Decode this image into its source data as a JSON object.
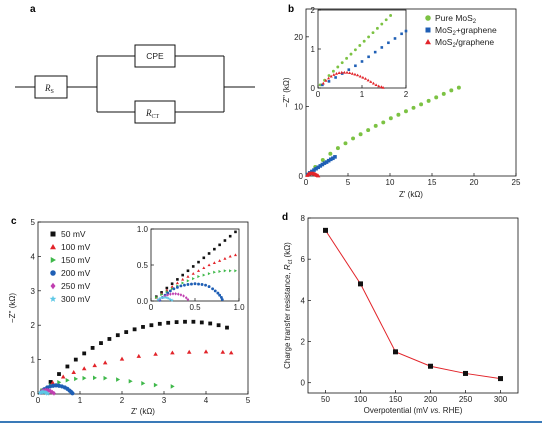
{
  "colors": {
    "green": "#7cc243",
    "blue": "#1f5fb5",
    "red": "#e2242a",
    "black": "#111111",
    "darkgreen": "#3fb84a",
    "purple": "#c03fb0",
    "cyan": "#5ec8e6",
    "line_red": "#e2242a",
    "rule": "#3a7ab8"
  },
  "panels": {
    "a": "a",
    "b": "b",
    "c": "c",
    "d": "d"
  },
  "circuit": {
    "rs_main": "R",
    "rs_sub": "S",
    "cpe": "CPE",
    "rct_main": "R",
    "rct_sub": "CT"
  },
  "chart_data": [
    {
      "id": "b",
      "type": "scatter",
      "title": "",
      "xlabel": "Z' (kΩ)",
      "ylabel": "−Z'' (kΩ)",
      "xlim": [
        0,
        25
      ],
      "ylim": [
        0,
        24
      ],
      "xticks": [
        "0",
        "5",
        "10",
        "15",
        "20",
        "25"
      ],
      "yticks": [
        "0",
        "10",
        "20"
      ],
      "legend_position": "top-right",
      "series": [
        {
          "name": "Pure MoS2",
          "label_main": "Pure MoS",
          "label_sub": "2",
          "label_rest": "",
          "color_key": "green",
          "marker": "circle",
          "x": [
            0.2,
            1.1,
            2.0,
            2.9,
            3.8,
            4.7,
            5.6,
            6.5,
            7.4,
            8.3,
            9.2,
            10.1,
            11.0,
            11.9,
            12.8,
            13.7,
            14.6,
            15.5,
            16.4,
            17.3,
            18.2
          ],
          "y": [
            0.2,
            1.3,
            2.3,
            3.2,
            4.0,
            4.7,
            5.4,
            6.0,
            6.6,
            7.2,
            7.7,
            8.3,
            8.8,
            9.3,
            9.8,
            10.3,
            10.8,
            11.3,
            11.8,
            12.3,
            12.7
          ]
        },
        {
          "name": "MoS2+graphene",
          "label_main": "MoS",
          "label_sub": "2",
          "label_rest": "+graphene",
          "color_key": "blue",
          "marker": "square",
          "x": [
            0.2,
            0.45,
            0.7,
            0.95,
            1.2,
            1.45,
            1.7,
            1.95,
            2.2,
            2.45,
            2.7,
            2.95,
            3.2,
            3.45
          ],
          "y": [
            0.2,
            0.45,
            0.65,
            0.85,
            1.05,
            1.25,
            1.45,
            1.65,
            1.85,
            2.0,
            2.2,
            2.4,
            2.55,
            2.75
          ]
        },
        {
          "name": "MoS2/graphene",
          "label_main": "MoS",
          "label_sub": "2",
          "label_rest": "/graphene",
          "color_key": "red",
          "marker": "triangle",
          "x": [
            0.15,
            0.25,
            0.35,
            0.45,
            0.55,
            0.65,
            0.75,
            0.85,
            0.95,
            1.05,
            1.15,
            1.25,
            1.35,
            1.45
          ],
          "y": [
            0.1,
            0.22,
            0.3,
            0.35,
            0.37,
            0.38,
            0.37,
            0.35,
            0.32,
            0.28,
            0.22,
            0.15,
            0.09,
            0.03
          ]
        }
      ],
      "inset": {
        "xlim": [
          0,
          2
        ],
        "ylim": [
          0,
          2
        ],
        "xticks": [
          "0",
          "1",
          "2"
        ],
        "yticks": [
          "0",
          "1",
          "2"
        ],
        "series": [
          {
            "color_key": "green",
            "marker": "circle",
            "x": [
              0.05,
              0.15,
              0.25,
              0.35,
              0.45,
              0.55,
              0.65,
              0.75,
              0.85,
              0.95,
              1.05,
              1.15,
              1.25,
              1.35,
              1.45,
              1.55,
              1.65
            ],
            "y": [
              0.08,
              0.2,
              0.32,
              0.43,
              0.54,
              0.65,
              0.76,
              0.87,
              0.98,
              1.09,
              1.2,
              1.31,
              1.42,
              1.53,
              1.64,
              1.75,
              1.86
            ]
          },
          {
            "color_key": "blue",
            "marker": "square",
            "x": [
              0.1,
              0.25,
              0.4,
              0.55,
              0.7,
              0.85,
              1.0,
              1.15,
              1.3,
              1.45,
              1.6,
              1.75,
              1.9,
              2.0
            ],
            "y": [
              0.08,
              0.17,
              0.27,
              0.37,
              0.47,
              0.57,
              0.68,
              0.8,
              0.92,
              1.04,
              1.16,
              1.27,
              1.39,
              1.46
            ]
          },
          {
            "color_key": "red",
            "marker": "triangle",
            "x": [
              0.12,
              0.18,
              0.24,
              0.3,
              0.36,
              0.42,
              0.48,
              0.54,
              0.6,
              0.66,
              0.72,
              0.78,
              0.84,
              0.9,
              0.96,
              1.02,
              1.08,
              1.14,
              1.2,
              1.26,
              1.32,
              1.38,
              1.44,
              1.48
            ],
            "y": [
              0.12,
              0.19,
              0.25,
              0.3,
              0.34,
              0.37,
              0.39,
              0.4,
              0.4,
              0.4,
              0.39,
              0.37,
              0.35,
              0.33,
              0.3,
              0.27,
              0.24,
              0.2,
              0.16,
              0.12,
              0.08,
              0.05,
              0.03,
              0.01
            ]
          }
        ]
      }
    },
    {
      "id": "c",
      "type": "scatter",
      "title": "",
      "xlabel": "Z' (kΩ)",
      "ylabel": "−Z'' (kΩ)",
      "xlim": [
        0,
        5
      ],
      "ylim": [
        0,
        5
      ],
      "xticks": [
        "0",
        "1",
        "2",
        "3",
        "4",
        "5"
      ],
      "yticks": [
        "0",
        "1",
        "2",
        "3",
        "4",
        "5"
      ],
      "legend_position": "top-left",
      "series": [
        {
          "name": "50 mV",
          "color_key": "black",
          "marker": "square",
          "x": [
            0.1,
            0.3,
            0.5,
            0.7,
            0.9,
            1.1,
            1.3,
            1.5,
            1.7,
            1.9,
            2.1,
            2.3,
            2.5,
            2.7,
            2.9,
            3.1,
            3.3,
            3.5,
            3.7,
            3.9,
            4.1,
            4.3,
            4.5
          ],
          "y": [
            0.1,
            0.35,
            0.58,
            0.8,
            1.0,
            1.18,
            1.34,
            1.48,
            1.6,
            1.71,
            1.8,
            1.88,
            1.95,
            2.0,
            2.04,
            2.07,
            2.09,
            2.1,
            2.1,
            2.08,
            2.05,
            2.0,
            1.93
          ]
        },
        {
          "name": "100 mV",
          "color_key": "red",
          "marker": "triangle",
          "x": [
            0.1,
            0.35,
            0.6,
            0.85,
            1.1,
            1.35,
            1.6,
            2.0,
            2.4,
            2.8,
            3.2,
            3.6,
            4.0,
            4.4,
            4.6
          ],
          "y": [
            0.1,
            0.33,
            0.5,
            0.63,
            0.74,
            0.83,
            0.91,
            1.02,
            1.1,
            1.16,
            1.2,
            1.22,
            1.23,
            1.22,
            1.2
          ]
        },
        {
          "name": "150 mV",
          "color_key": "darkgreen",
          "marker": "triangle-right",
          "x": [
            0.1,
            0.3,
            0.5,
            0.7,
            0.9,
            1.1,
            1.35,
            1.6,
            1.9,
            2.2,
            2.5,
            2.8,
            3.2
          ],
          "y": [
            0.1,
            0.25,
            0.34,
            0.4,
            0.44,
            0.46,
            0.47,
            0.46,
            0.42,
            0.37,
            0.31,
            0.26,
            0.22
          ]
        },
        {
          "name": "200 mV",
          "color_key": "blue",
          "marker": "circle",
          "x": [
            0.08,
            0.15,
            0.22,
            0.29,
            0.36,
            0.43,
            0.5,
            0.57,
            0.64,
            0.7,
            0.75,
            0.79,
            0.82
          ],
          "y": [
            0.06,
            0.14,
            0.19,
            0.22,
            0.24,
            0.25,
            0.24,
            0.22,
            0.19,
            0.15,
            0.1,
            0.06,
            0.02
          ]
        },
        {
          "name": "250 mV",
          "color_key": "purple",
          "marker": "diamond",
          "x": [
            0.06,
            0.1,
            0.14,
            0.18,
            0.22,
            0.26,
            0.3,
            0.34,
            0.38
          ],
          "y": [
            0.04,
            0.08,
            0.1,
            0.11,
            0.11,
            0.1,
            0.08,
            0.05,
            0.02
          ]
        },
        {
          "name": "300 mV",
          "color_key": "cyan",
          "marker": "star",
          "x": [
            0.05,
            0.08,
            0.11,
            0.14,
            0.17,
            0.2,
            0.23
          ],
          "y": [
            0.03,
            0.05,
            0.06,
            0.06,
            0.05,
            0.03,
            0.01
          ]
        }
      ],
      "inset": {
        "xlim": [
          0,
          1
        ],
        "ylim": [
          0,
          1
        ],
        "xticks": [
          "0",
          "0.5",
          "1.0"
        ],
        "yticks": [
          "0.0",
          "0.5",
          "1.0"
        ],
        "series": [
          {
            "color_key": "black",
            "marker": "square",
            "x": [
              0.06,
              0.12,
              0.18,
              0.24,
              0.3,
              0.36,
              0.42,
              0.48,
              0.54,
              0.6,
              0.66,
              0.72,
              0.78,
              0.84,
              0.9,
              0.96
            ],
            "y": [
              0.06,
              0.12,
              0.18,
              0.24,
              0.3,
              0.36,
              0.42,
              0.48,
              0.54,
              0.6,
              0.66,
              0.72,
              0.78,
              0.84,
              0.9,
              0.96
            ]
          },
          {
            "color_key": "red",
            "marker": "triangle",
            "x": [
              0.06,
              0.12,
              0.18,
              0.24,
              0.3,
              0.36,
              0.42,
              0.48,
              0.54,
              0.6,
              0.66,
              0.72,
              0.78,
              0.84,
              0.9,
              0.96
            ],
            "y": [
              0.05,
              0.1,
              0.15,
              0.2,
              0.25,
              0.3,
              0.34,
              0.38,
              0.42,
              0.46,
              0.5,
              0.53,
              0.56,
              0.59,
              0.62,
              0.64
            ]
          },
          {
            "color_key": "darkgreen",
            "marker": "triangle-right",
            "x": [
              0.06,
              0.12,
              0.18,
              0.24,
              0.3,
              0.36,
              0.42,
              0.48,
              0.54,
              0.6,
              0.66,
              0.72,
              0.78,
              0.84,
              0.9,
              0.96
            ],
            "y": [
              0.05,
              0.09,
              0.13,
              0.17,
              0.21,
              0.25,
              0.28,
              0.31,
              0.34,
              0.36,
              0.38,
              0.4,
              0.41,
              0.42,
              0.42,
              0.42
            ]
          },
          {
            "color_key": "blue",
            "marker": "circle",
            "x": [
              0.1,
              0.13,
              0.16,
              0.19,
              0.22,
              0.26,
              0.3,
              0.34,
              0.38,
              0.42,
              0.46,
              0.5,
              0.54,
              0.58,
              0.62,
              0.66,
              0.7,
              0.73,
              0.76,
              0.78,
              0.8,
              0.81
            ],
            "y": [
              0.01,
              0.05,
              0.08,
              0.11,
              0.14,
              0.17,
              0.19,
              0.21,
              0.22,
              0.23,
              0.235,
              0.24,
              0.235,
              0.23,
              0.22,
              0.2,
              0.17,
              0.14,
              0.11,
              0.08,
              0.05,
              0.02
            ]
          },
          {
            "color_key": "purple",
            "marker": "diamond",
            "x": [
              0.1,
              0.13,
              0.16,
              0.19,
              0.22,
              0.25,
              0.28,
              0.31,
              0.34,
              0.37,
              0.4,
              0.42
            ],
            "y": [
              0.02,
              0.05,
              0.07,
              0.085,
              0.095,
              0.1,
              0.1,
              0.095,
              0.085,
              0.07,
              0.045,
              0.02
            ]
          },
          {
            "color_key": "cyan",
            "marker": "star",
            "x": [
              0.08,
              0.1,
              0.12,
              0.14,
              0.16,
              0.18,
              0.2,
              0.22,
              0.24
            ],
            "y": [
              0.02,
              0.035,
              0.045,
              0.05,
              0.05,
              0.045,
              0.035,
              0.02,
              0.01
            ]
          }
        ]
      }
    },
    {
      "id": "d",
      "type": "line",
      "title": "",
      "xlabel_pre": "Overpotential (mV ",
      "xlabel_italic": "vs.",
      "xlabel_post": " RHE)",
      "ylabel_pre": "Charge transfer resistance, ",
      "ylabel_main": "R",
      "ylabel_sub": "ct",
      "ylabel_post": " (kΩ)",
      "xlim": [
        25,
        325
      ],
      "ylim": [
        -0.5,
        8
      ],
      "xticks": [
        "50",
        "100",
        "150",
        "200",
        "250",
        "300"
      ],
      "yticks": [
        "0",
        "2",
        "4",
        "6",
        "8"
      ],
      "x": [
        50,
        100,
        150,
        200,
        250,
        300
      ],
      "y": [
        7.4,
        4.8,
        1.5,
        0.8,
        0.45,
        0.2
      ],
      "line_color_key": "line_red",
      "marker_color_key": "black"
    }
  ]
}
